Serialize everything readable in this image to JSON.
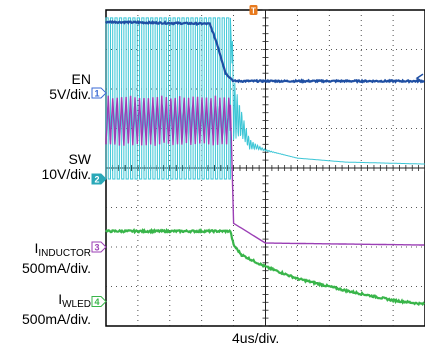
{
  "chart_data": {
    "type": "line",
    "title": "",
    "xlabel": "4us/div.",
    "ylabel": "",
    "grid": true,
    "x_divisions": 10,
    "y_divisions": 8,
    "x_unit": "us",
    "x_per_div": 4,
    "trigger_marker": "T",
    "channels": [
      {
        "name": "EN",
        "scale": "5V/div.",
        "color": "#1f4fa3",
        "marker": "1",
        "marker_color": "#3a6ad4",
        "ground_div": 5.9
      },
      {
        "name": "SW",
        "scale": "10V/div.",
        "color": "#3cc6d6",
        "marker": "2",
        "marker_color": "#2aa8b8",
        "ground_div": 3.72
      },
      {
        "name_main": "I",
        "name_sub": "INDUCTOR",
        "scale": "500mA/div.",
        "color": "#9b3fb5",
        "marker": "3",
        "marker_color": "#9b3fb5",
        "ground_div": 2.0
      },
      {
        "name_main": "I",
        "name_sub": "WLED",
        "scale": "500mA/div.",
        "color": "#39b54a",
        "marker": "4",
        "marker_color": "#39b54a",
        "ground_div": 0.62
      }
    ],
    "series": [
      {
        "name": "EN",
        "x": [
          0,
          13,
          14,
          15,
          16,
          40
        ],
        "y": [
          7.7,
          7.65,
          7.1,
          6.4,
          6.2,
          6.2
        ]
      },
      {
        "name": "SW",
        "x": [
          0,
          15.6,
          16,
          17,
          18,
          20,
          24,
          30,
          40
        ],
        "y": [
          7.8,
          7.8,
          5.5,
          5.1,
          4.6,
          4.45,
          4.25,
          4.15,
          4.1
        ]
      },
      {
        "name": "I_INDUCTOR",
        "x": [
          0,
          15.6,
          16,
          20,
          40
        ],
        "y": [
          5.6,
          5.6,
          2.6,
          2.1,
          2.05
        ]
      },
      {
        "name": "I_WLED",
        "x": [
          0,
          15.6,
          16,
          17,
          20,
          24,
          30,
          36,
          40
        ],
        "y": [
          2.4,
          2.4,
          2.05,
          1.8,
          1.5,
          1.2,
          0.9,
          0.65,
          0.55
        ]
      }
    ]
  }
}
